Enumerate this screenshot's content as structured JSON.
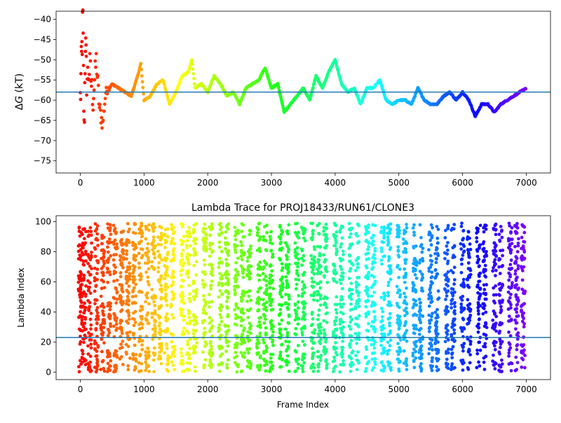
{
  "chart_data": [
    {
      "type": "scatter",
      "title": "",
      "xlabel": "",
      "ylabel": "ΔG (kT)",
      "ylabel_parts": [
        "Δ",
        "G",
        " (kT)"
      ],
      "xlim": [
        -380,
        7380
      ],
      "ylim": [
        -78,
        -38
      ],
      "xticks": [
        0,
        1000,
        2000,
        3000,
        4000,
        5000,
        6000,
        7000
      ],
      "yticks": [
        -75,
        -70,
        -65,
        -60,
        -55,
        -50,
        -45,
        -40
      ],
      "hline": -58,
      "hline_color": "#1f77b4",
      "colormap": "rainbow (red at frame 0 → violet at frame 7000)",
      "grid": false,
      "series": [
        {
          "points_note": "Running free-energy estimate per frame; values approximated from plot",
          "x": [
            0,
            20,
            40,
            60,
            80,
            100,
            150,
            200,
            250,
            300,
            350,
            400,
            500,
            600,
            700,
            800,
            900,
            950,
            1000,
            1100,
            1200,
            1300,
            1400,
            1500,
            1600,
            1700,
            1750,
            1800,
            1900,
            2000,
            2100,
            2200,
            2300,
            2400,
            2500,
            2600,
            2700,
            2800,
            2900,
            3000,
            3100,
            3200,
            3300,
            3400,
            3500,
            3600,
            3700,
            3800,
            3900,
            4000,
            4100,
            4200,
            4300,
            4400,
            4500,
            4600,
            4700,
            4800,
            4900,
            5000,
            5100,
            5200,
            5300,
            5400,
            5500,
            5600,
            5700,
            5800,
            5900,
            6000,
            6100,
            6200,
            6300,
            6400,
            6500,
            6600,
            6700,
            6800,
            6900,
            7000
          ],
          "y": [
            -60,
            -50,
            -40,
            -68,
            -45,
            -55,
            -52,
            -60,
            -50,
            -62,
            -66,
            -58,
            -56,
            -57,
            -58,
            -59,
            -54,
            -51,
            -60,
            -59,
            -56,
            -55,
            -61,
            -58,
            -54,
            -53,
            -50,
            -57,
            -56,
            -58,
            -54,
            -56,
            -59,
            -58,
            -61,
            -57,
            -56,
            -55,
            -52,
            -57,
            -56,
            -63,
            -61,
            -59,
            -57,
            -60,
            -54,
            -57,
            -53,
            -50,
            -56,
            -58,
            -57,
            -61,
            -57,
            -57,
            -55,
            -60,
            -61,
            -60,
            -60,
            -61,
            -57,
            -60,
            -61,
            -61,
            -59,
            -58,
            -60,
            -58,
            -60,
            -64,
            -61,
            -61,
            -63,
            -61,
            -60,
            -59,
            -58,
            -57
          ]
        }
      ]
    },
    {
      "type": "scatter",
      "title": "Lambda Trace for PROJ18433/RUN61/CLONE3",
      "xlabel": "Frame Index",
      "ylabel": "Lambda Index",
      "xlim": [
        -380,
        7380
      ],
      "ylim": [
        -5,
        104
      ],
      "xticks": [
        0,
        1000,
        2000,
        3000,
        4000,
        5000,
        6000,
        7000
      ],
      "yticks": [
        0,
        20,
        40,
        60,
        80,
        100
      ],
      "hline": 23,
      "hline_color": "#1f77b4",
      "colormap": "rainbow (red at frame 0 → violet at frame 7000)",
      "grid": false,
      "series": [
        {
          "points_note": "Lambda index sampled per frame; dense vertical bands 0–100 with gaps; approximated",
          "band_centers": [
            0,
            60,
            150,
            250,
            350,
            450,
            550,
            650,
            750,
            850,
            950,
            1050,
            1150,
            1250,
            1350,
            1450,
            1600,
            1700,
            1800,
            1950,
            2050,
            2200,
            2300,
            2450,
            2550,
            2650,
            2800,
            2900,
            3000,
            3150,
            3250,
            3400,
            3500,
            3650,
            3750,
            3850,
            4000,
            4100,
            4250,
            4350,
            4500,
            4600,
            4750,
            4850,
            5000,
            5100,
            5250,
            5350,
            5500,
            5600,
            5750,
            5850,
            6000,
            6100,
            6250,
            6350,
            6500,
            6600,
            6750,
            6850,
            6950
          ]
        }
      ]
    }
  ]
}
